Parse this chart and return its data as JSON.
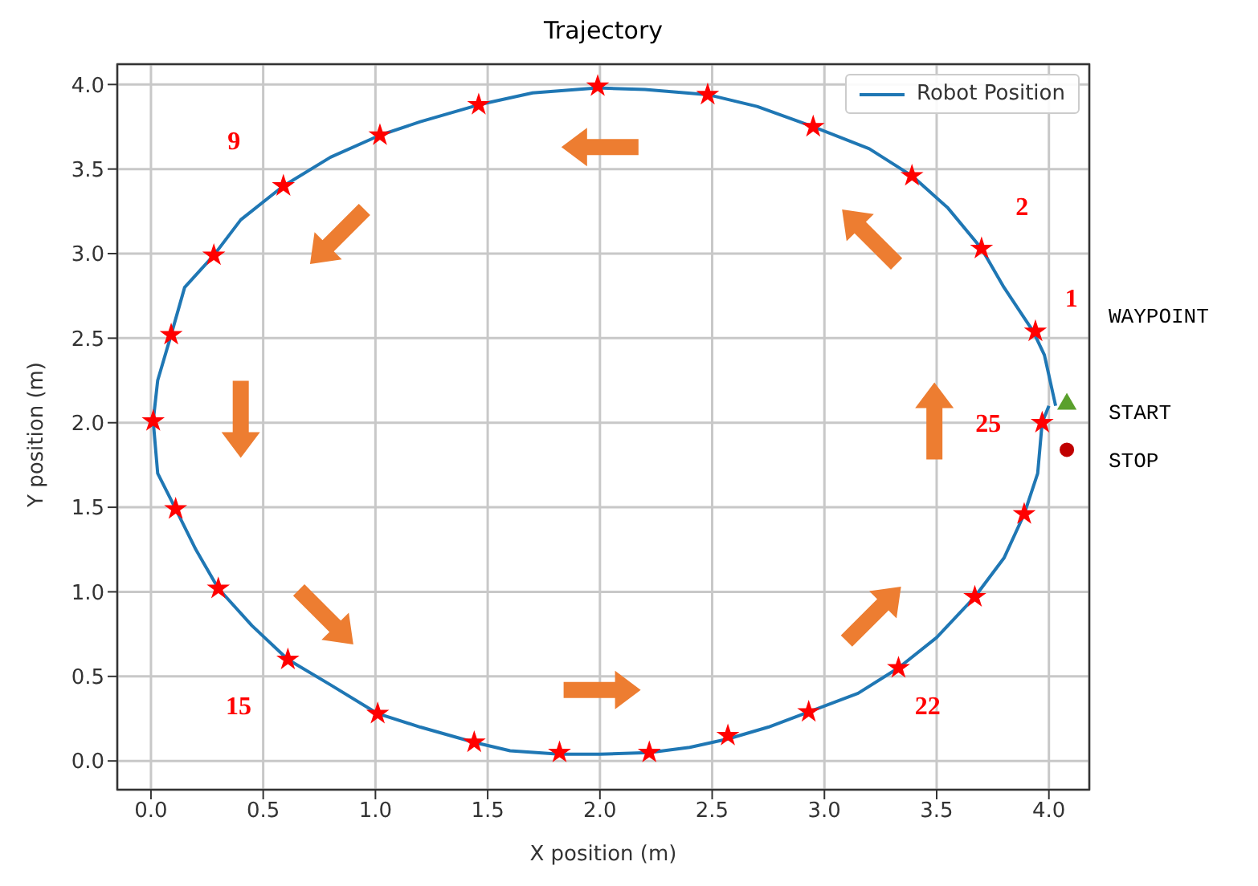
{
  "chart_data": {
    "type": "line",
    "title": "Trajectory",
    "xlabel": "X position (m)",
    "ylabel": "Y position (m)",
    "xlim": [
      -0.15,
      4.18
    ],
    "ylim": [
      -0.17,
      4.12
    ],
    "xticks": [
      {
        "value": 0,
        "label": "0.0"
      },
      0.5,
      {
        "value": 1,
        "label": "1.0"
      },
      1.5,
      {
        "value": 2,
        "label": "2.0"
      },
      2.5,
      {
        "value": 3,
        "label": "3.0"
      },
      3.5,
      {
        "value": 4,
        "label": "4.0"
      }
    ],
    "yticks": [
      {
        "value": 0,
        "label": "0.0"
      },
      0.5,
      {
        "value": 1,
        "label": "1.0"
      },
      1.5,
      {
        "value": 2,
        "label": "2.0"
      },
      2.5,
      {
        "value": 3,
        "label": "3.0"
      },
      3.5,
      {
        "value": 4,
        "label": "4.0"
      }
    ],
    "grid": true,
    "legend": "top right",
    "series": [
      {
        "name": "Robot Position",
        "color": "#1f77b4",
        "marker": "none",
        "x": [
          4.03,
          3.98,
          3.93,
          3.8,
          3.7,
          3.55,
          3.39,
          3.2,
          2.95,
          2.7,
          2.48,
          2.2,
          1.99,
          1.7,
          1.46,
          1.2,
          1.02,
          0.8,
          0.59,
          0.4,
          0.28,
          0.15,
          0.09,
          0.03,
          0.01,
          0.03,
          0.11,
          0.2,
          0.3,
          0.45,
          0.61,
          0.8,
          1.01,
          1.2,
          1.44,
          1.6,
          1.82,
          2.0,
          2.22,
          2.4,
          2.57,
          2.75,
          2.93,
          3.15,
          3.33,
          3.5,
          3.67,
          3.8,
          3.89,
          3.95,
          3.97,
          4.0
        ],
        "values": [
          2.1,
          2.4,
          2.54,
          2.8,
          3.03,
          3.27,
          3.46,
          3.62,
          3.75,
          3.87,
          3.94,
          3.97,
          3.98,
          3.95,
          3.88,
          3.78,
          3.7,
          3.57,
          3.4,
          3.2,
          2.99,
          2.8,
          2.52,
          2.25,
          2.01,
          1.7,
          1.49,
          1.25,
          1.02,
          0.8,
          0.6,
          0.45,
          0.28,
          0.2,
          0.11,
          0.06,
          0.04,
          0.04,
          0.05,
          0.08,
          0.13,
          0.2,
          0.29,
          0.4,
          0.55,
          0.73,
          0.97,
          1.2,
          1.46,
          1.7,
          2.0,
          2.1
        ]
      },
      {
        "type": "scatter",
        "color": "#ff0000",
        "marker": "star",
        "x": [
          3.94,
          3.7,
          3.39,
          2.95,
          2.48,
          1.99,
          1.46,
          1.02,
          0.59,
          0.28,
          0.09,
          0.01,
          0.11,
          0.3,
          0.61,
          1.01,
          1.44,
          1.82,
          2.22,
          2.57,
          2.93,
          3.33,
          3.67,
          3.89,
          3.97
        ],
        "values": [
          2.54,
          3.03,
          3.46,
          3.75,
          3.94,
          3.99,
          3.88,
          3.7,
          3.4,
          2.99,
          2.52,
          2.01,
          1.49,
          1.02,
          0.6,
          0.28,
          0.11,
          0.05,
          0.05,
          0.15,
          0.29,
          0.55,
          0.97,
          1.46,
          2.0
        ]
      },
      {
        "type": "scatter",
        "color": "#5aa02c",
        "marker": "triangle",
        "x": [
          4.08
        ],
        "values": [
          2.11
        ]
      },
      {
        "type": "scatter",
        "color": "#c00000",
        "marker": "circle",
        "x": [
          4.08
        ],
        "values": [
          1.84
        ]
      }
    ],
    "annotations": [
      "1",
      "2",
      "9",
      "15",
      "22",
      "25",
      "WAYPOINT",
      "START",
      "STOP"
    ]
  }
}
